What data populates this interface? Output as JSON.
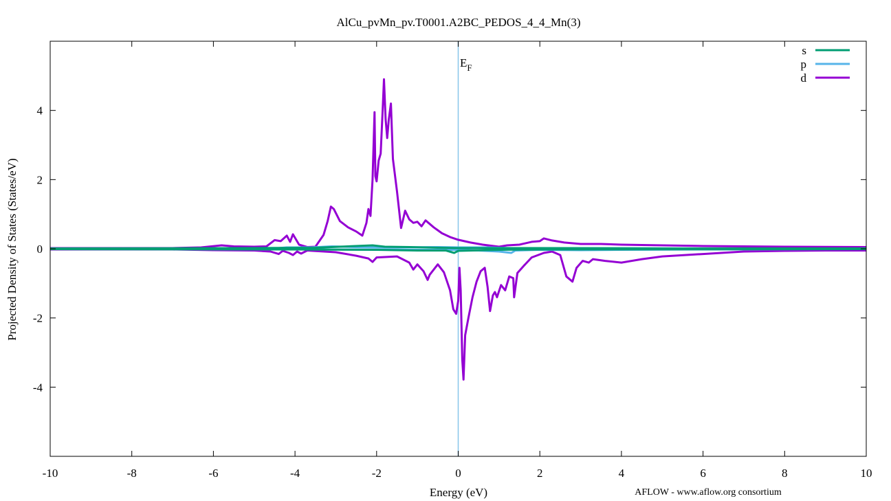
{
  "chart_data": {
    "type": "line",
    "title": "AlCu_pvMn_pv.T0001.A2BC_PEDOS_4_4_Mn(3)",
    "xlabel": "Energy (eV)",
    "ylabel": "Projected Density of States (States/eV)",
    "xlim": [
      -10,
      10
    ],
    "ylim": [
      -6,
      6
    ],
    "xticks": [
      -10,
      -8,
      -6,
      -4,
      -2,
      0,
      2,
      4,
      6,
      8,
      10
    ],
    "yticks": [
      -4,
      -2,
      0,
      2,
      4
    ],
    "grid": false,
    "legend_position": "top-right",
    "fermi_level": {
      "x": 0,
      "label": "E",
      "label_sub": "F",
      "color": "#87c6ea"
    },
    "footer": "AFLOW - www.aflow.org consortium",
    "series": [
      {
        "name": "s",
        "color": "#009e73",
        "up": [
          [
            -10,
            0.01
          ],
          [
            -5,
            0.02
          ],
          [
            -3.5,
            0.03
          ],
          [
            -2.1,
            0.1
          ],
          [
            -1.8,
            0.06
          ],
          [
            -1.2,
            0.05
          ],
          [
            -0.5,
            0.03
          ],
          [
            0,
            0.02
          ],
          [
            2,
            0.02
          ],
          [
            5,
            0.01
          ],
          [
            10,
            0.01
          ]
        ],
        "down": [
          [
            -10,
            -0.01
          ],
          [
            -4,
            -0.02
          ],
          [
            -2,
            -0.03
          ],
          [
            -1,
            -0.05
          ],
          [
            -0.3,
            -0.05
          ],
          [
            -0.1,
            -0.12
          ],
          [
            0,
            -0.06
          ],
          [
            1,
            -0.03
          ],
          [
            2,
            -0.02
          ],
          [
            10,
            -0.01
          ]
        ]
      },
      {
        "name": "p",
        "color": "#56b4e9",
        "up": [
          [
            -10,
            0.01
          ],
          [
            -4.5,
            0.01
          ],
          [
            -4.2,
            0.04
          ],
          [
            -3.6,
            0.04
          ],
          [
            -3.1,
            0.07
          ],
          [
            -2.5,
            0.05
          ],
          [
            -1.5,
            0.04
          ],
          [
            -0.5,
            0.05
          ],
          [
            0,
            0.04
          ],
          [
            0.7,
            0.04
          ],
          [
            1.3,
            0.02
          ],
          [
            2,
            0.02
          ],
          [
            3,
            0.02
          ],
          [
            6,
            0.01
          ],
          [
            10,
            0.01
          ]
        ],
        "down": [
          [
            -10,
            -0.01
          ],
          [
            -4,
            -0.02
          ],
          [
            -2,
            -0.02
          ],
          [
            -1,
            -0.03
          ],
          [
            0,
            -0.03
          ],
          [
            0.5,
            -0.05
          ],
          [
            1,
            -0.08
          ],
          [
            1.3,
            -0.12
          ],
          [
            1.4,
            -0.05
          ],
          [
            2,
            -0.03
          ],
          [
            3,
            -0.04
          ],
          [
            4,
            -0.03
          ],
          [
            6,
            -0.02
          ],
          [
            10,
            -0.01
          ]
        ]
      },
      {
        "name": "d",
        "color": "#9400d3",
        "up": [
          [
            -10,
            0.02
          ],
          [
            -7,
            0.02
          ],
          [
            -6.3,
            0.04
          ],
          [
            -5.8,
            0.1
          ],
          [
            -5.5,
            0.07
          ],
          [
            -5,
            0.06
          ],
          [
            -4.7,
            0.07
          ],
          [
            -4.5,
            0.25
          ],
          [
            -4.35,
            0.22
          ],
          [
            -4.2,
            0.38
          ],
          [
            -4.12,
            0.2
          ],
          [
            -4.05,
            0.42
          ],
          [
            -3.9,
            0.12
          ],
          [
            -3.7,
            0.05
          ],
          [
            -3.5,
            0.06
          ],
          [
            -3.3,
            0.4
          ],
          [
            -3.2,
            0.8
          ],
          [
            -3.12,
            1.22
          ],
          [
            -3.05,
            1.15
          ],
          [
            -2.9,
            0.8
          ],
          [
            -2.7,
            0.62
          ],
          [
            -2.5,
            0.5
          ],
          [
            -2.35,
            0.38
          ],
          [
            -2.25,
            0.75
          ],
          [
            -2.2,
            1.15
          ],
          [
            -2.15,
            0.95
          ],
          [
            -2.1,
            2.0
          ],
          [
            -2.05,
            3.95
          ],
          [
            -2.03,
            2.1
          ],
          [
            -2.0,
            1.95
          ],
          [
            -1.95,
            2.55
          ],
          [
            -1.9,
            2.75
          ],
          [
            -1.85,
            4.05
          ],
          [
            -1.82,
            4.9
          ],
          [
            -1.78,
            3.75
          ],
          [
            -1.74,
            3.2
          ],
          [
            -1.7,
            3.75
          ],
          [
            -1.65,
            4.2
          ],
          [
            -1.6,
            2.6
          ],
          [
            -1.5,
            1.65
          ],
          [
            -1.4,
            0.6
          ],
          [
            -1.3,
            1.1
          ],
          [
            -1.2,
            0.85
          ],
          [
            -1.1,
            0.75
          ],
          [
            -1.0,
            0.78
          ],
          [
            -0.9,
            0.65
          ],
          [
            -0.8,
            0.82
          ],
          [
            -0.6,
            0.62
          ],
          [
            -0.4,
            0.45
          ],
          [
            -0.2,
            0.34
          ],
          [
            0,
            0.26
          ],
          [
            0.3,
            0.18
          ],
          [
            0.6,
            0.12
          ],
          [
            1,
            0.06
          ],
          [
            1.2,
            0.1
          ],
          [
            1.5,
            0.12
          ],
          [
            1.8,
            0.2
          ],
          [
            2.0,
            0.22
          ],
          [
            2.1,
            0.3
          ],
          [
            2.3,
            0.24
          ],
          [
            2.6,
            0.18
          ],
          [
            3,
            0.14
          ],
          [
            3.5,
            0.14
          ],
          [
            4,
            0.12
          ],
          [
            5,
            0.1
          ],
          [
            6,
            0.08
          ],
          [
            8,
            0.06
          ],
          [
            10,
            0.05
          ]
        ],
        "down": [
          [
            -10,
            -0.02
          ],
          [
            -7,
            -0.02
          ],
          [
            -6,
            -0.04
          ],
          [
            -5,
            -0.05
          ],
          [
            -4.6,
            -0.08
          ],
          [
            -4.4,
            -0.15
          ],
          [
            -4.3,
            -0.06
          ],
          [
            -4.15,
            -0.12
          ],
          [
            -4.05,
            -0.18
          ],
          [
            -3.95,
            -0.08
          ],
          [
            -3.85,
            -0.14
          ],
          [
            -3.7,
            -0.05
          ],
          [
            -3,
            -0.1
          ],
          [
            -2.5,
            -0.2
          ],
          [
            -2.2,
            -0.28
          ],
          [
            -2.1,
            -0.38
          ],
          [
            -2.0,
            -0.25
          ],
          [
            -1.5,
            -0.22
          ],
          [
            -1.2,
            -0.4
          ],
          [
            -1.1,
            -0.6
          ],
          [
            -1.0,
            -0.45
          ],
          [
            -0.85,
            -0.65
          ],
          [
            -0.75,
            -0.9
          ],
          [
            -0.7,
            -0.75
          ],
          [
            -0.5,
            -0.45
          ],
          [
            -0.35,
            -0.68
          ],
          [
            -0.2,
            -1.2
          ],
          [
            -0.12,
            -1.75
          ],
          [
            -0.05,
            -1.88
          ],
          [
            0,
            -1.5
          ],
          [
            0.03,
            -0.55
          ],
          [
            0.06,
            -1.2
          ],
          [
            0.1,
            -3.2
          ],
          [
            0.13,
            -3.78
          ],
          [
            0.17,
            -2.5
          ],
          [
            0.25,
            -2.0
          ],
          [
            0.35,
            -1.4
          ],
          [
            0.45,
            -0.95
          ],
          [
            0.55,
            -0.65
          ],
          [
            0.65,
            -0.55
          ],
          [
            0.72,
            -1.1
          ],
          [
            0.78,
            -1.8
          ],
          [
            0.85,
            -1.35
          ],
          [
            0.9,
            -1.25
          ],
          [
            0.95,
            -1.4
          ],
          [
            1.05,
            -1.05
          ],
          [
            1.15,
            -1.2
          ],
          [
            1.25,
            -0.8
          ],
          [
            1.35,
            -0.85
          ],
          [
            1.37,
            -1.4
          ],
          [
            1.45,
            -0.7
          ],
          [
            1.6,
            -0.5
          ],
          [
            1.8,
            -0.25
          ],
          [
            2.1,
            -0.12
          ],
          [
            2.3,
            -0.08
          ],
          [
            2.5,
            -0.18
          ],
          [
            2.65,
            -0.8
          ],
          [
            2.8,
            -0.95
          ],
          [
            2.9,
            -0.55
          ],
          [
            3.05,
            -0.35
          ],
          [
            3.2,
            -0.4
          ],
          [
            3.3,
            -0.3
          ],
          [
            3.6,
            -0.35
          ],
          [
            4,
            -0.4
          ],
          [
            4.5,
            -0.3
          ],
          [
            5,
            -0.22
          ],
          [
            6,
            -0.15
          ],
          [
            7,
            -0.08
          ],
          [
            8,
            -0.06
          ],
          [
            9,
            -0.05
          ],
          [
            10,
            -0.05
          ]
        ]
      }
    ]
  }
}
